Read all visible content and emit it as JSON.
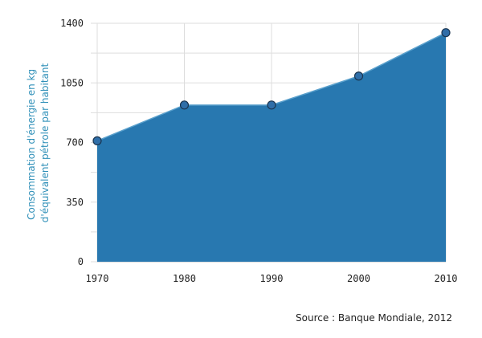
{
  "chart_data": {
    "type": "area",
    "title": "",
    "xlabel": "",
    "ylabel_lines": [
      "Consommation d'énergie en kg",
      "d'équivalent pétrole par habitant"
    ],
    "x": [
      1970,
      1980,
      1990,
      2000,
      2010
    ],
    "x_tick_labels": [
      "1970",
      "1980",
      "1990",
      "2000",
      "2010"
    ],
    "y_ticks": [
      0,
      350,
      700,
      1050,
      1400
    ],
    "y_tick_labels": [
      "0",
      "350",
      "700",
      "1050",
      "1400"
    ],
    "ylim": [
      0,
      1400
    ],
    "series": [
      {
        "values": [
          710,
          920,
          920,
          1090,
          1345
        ]
      }
    ],
    "grid": true,
    "legend": "none",
    "colors": {
      "area": "#2878b0",
      "line": "#5aa0cc",
      "marker_fill": "#2f6ea8",
      "marker_stroke": "#1a3550",
      "ylabel": "#2e8fb8"
    }
  },
  "source_text": "Source : Banque Mondiale, 2012"
}
